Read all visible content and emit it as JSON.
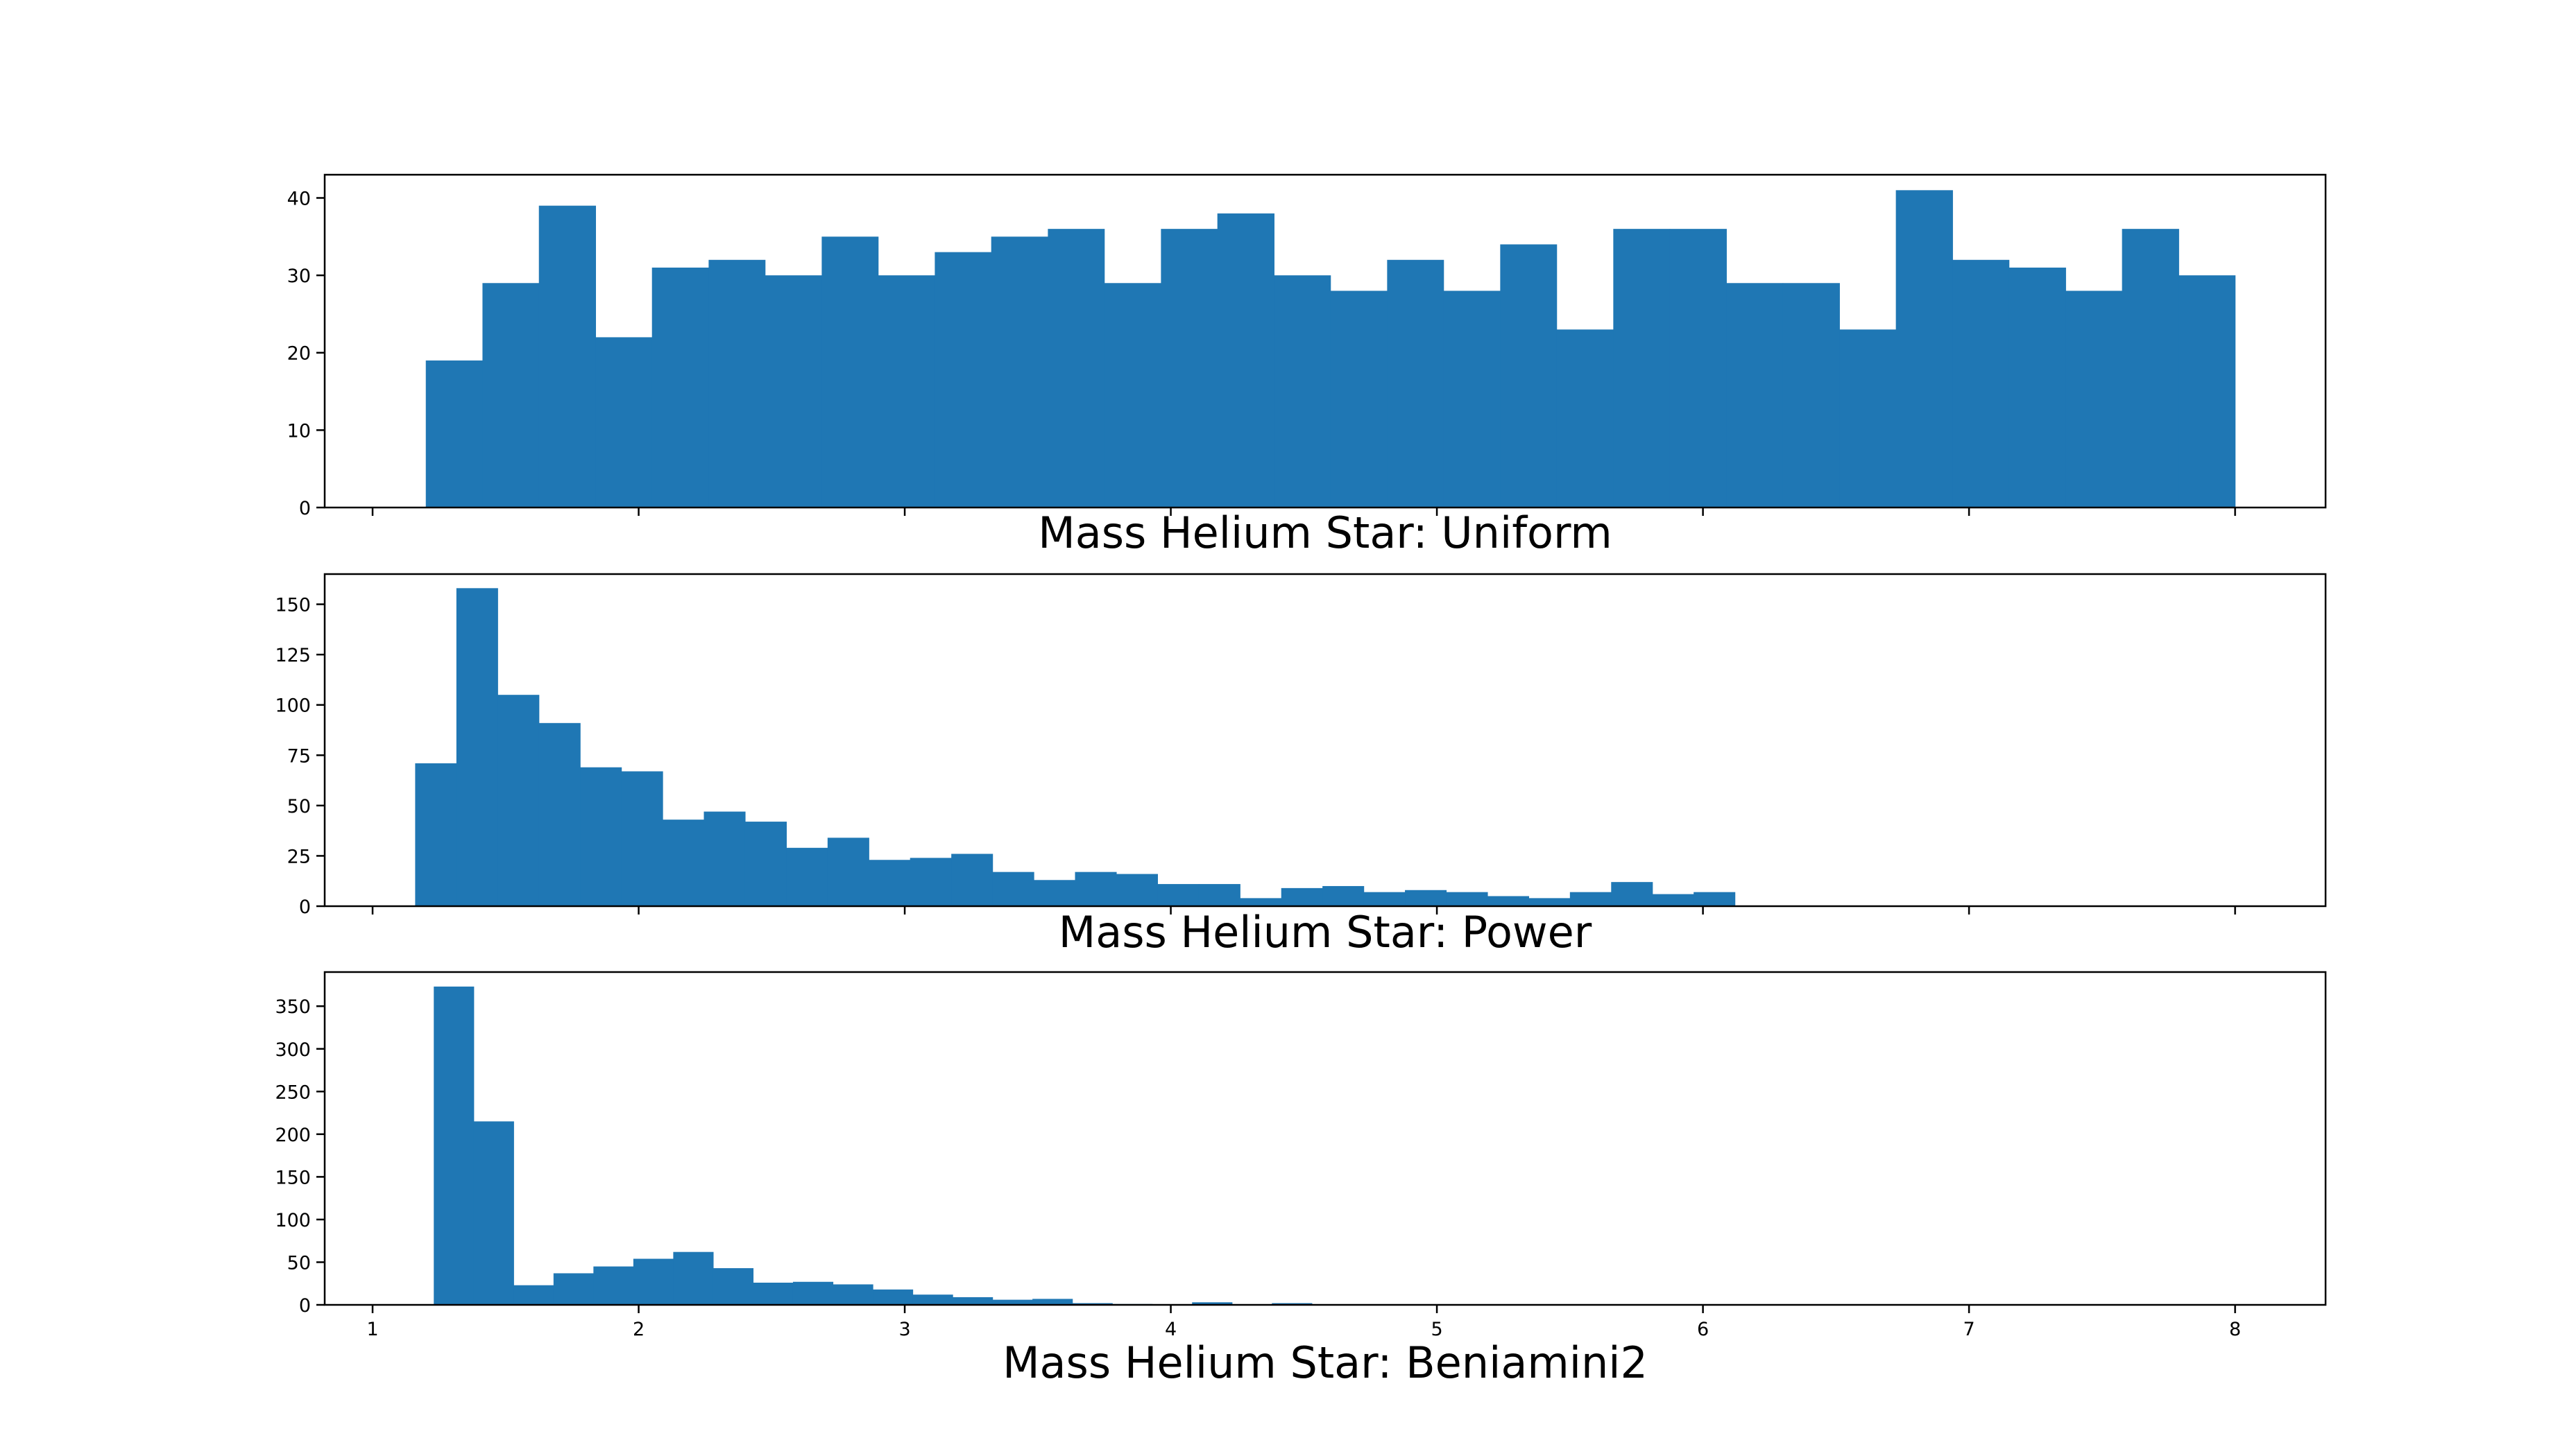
{
  "chart_data": [
    {
      "type": "bar",
      "title": "Mass Helium Star: Uniform",
      "xlabel": "",
      "ylabel": "",
      "color": "#1f77b4",
      "xlim": [
        0.82,
        8.34
      ],
      "ylim": [
        0,
        43
      ],
      "x_ticks": [
        1,
        2,
        3,
        4,
        5,
        6,
        7,
        8
      ],
      "x_tick_labels_visible": false,
      "y_ticks": [
        0,
        10,
        20,
        30,
        40
      ],
      "bin_edges": [
        1.2,
        1.413,
        1.625,
        1.838,
        2.05,
        2.263,
        2.475,
        2.688,
        2.9,
        3.113,
        3.325,
        3.538,
        3.75,
        3.963,
        4.175,
        4.388,
        4.6,
        4.813,
        5.025,
        5.238,
        5.45,
        5.663,
        5.875,
        6.088,
        6.3,
        6.513,
        6.725,
        6.938,
        7.15,
        7.363,
        7.575,
        7.788,
        8.0
      ],
      "values": [
        19,
        29,
        39,
        22,
        31,
        32,
        30,
        35,
        30,
        33,
        35,
        36,
        29,
        36,
        38,
        30,
        28,
        32,
        28,
        34,
        23,
        36,
        36,
        29,
        29,
        23,
        41,
        32,
        31,
        28,
        36,
        30
      ]
    },
    {
      "type": "bar",
      "title": "Mass Helium Star: Power",
      "xlabel": "",
      "ylabel": "",
      "color": "#1f77b4",
      "xlim": [
        0.82,
        8.34
      ],
      "ylim": [
        0,
        165
      ],
      "x_ticks": [
        1,
        2,
        3,
        4,
        5,
        6,
        7,
        8
      ],
      "x_tick_labels_visible": false,
      "y_ticks": [
        0,
        25,
        50,
        75,
        100,
        125,
        150
      ],
      "bin_edges": [
        1.16,
        1.315,
        1.47,
        1.625,
        1.78,
        1.935,
        2.09,
        2.245,
        2.4,
        2.555,
        2.71,
        2.865,
        3.02,
        3.175,
        3.33,
        3.485,
        3.64,
        3.795,
        3.95,
        4.105,
        4.26,
        4.415,
        4.57,
        4.725,
        4.88,
        5.035,
        5.19,
        5.345,
        5.5,
        5.655,
        5.81,
        5.965,
        6.12
      ],
      "values": [
        71,
        158,
        105,
        91,
        69,
        67,
        43,
        47,
        42,
        29,
        34,
        23,
        24,
        26,
        17,
        13,
        17,
        16,
        11,
        11,
        4,
        9,
        10,
        7,
        8,
        7,
        5,
        4,
        7,
        12,
        6,
        7
      ]
    },
    {
      "type": "bar",
      "title": "Mass Helium Star: Beniamini2",
      "xlabel": "",
      "ylabel": "",
      "color": "#1f77b4",
      "xlim": [
        0.82,
        8.34
      ],
      "ylim": [
        0,
        390
      ],
      "x_ticks": [
        1,
        2,
        3,
        4,
        5,
        6,
        7,
        8
      ],
      "x_tick_labels_visible": true,
      "y_ticks": [
        0,
        50,
        100,
        150,
        200,
        250,
        300,
        350
      ],
      "bin_edges": [
        1.23,
        1.38,
        1.53,
        1.68,
        1.83,
        1.98,
        2.13,
        2.28,
        2.43,
        2.58,
        2.73,
        2.88,
        3.03,
        3.18,
        3.33,
        3.48,
        3.63,
        3.78,
        3.93,
        4.08,
        4.23,
        4.38,
        4.53
      ],
      "values": [
        373,
        215,
        23,
        37,
        45,
        54,
        62,
        43,
        26,
        27,
        24,
        18,
        12,
        9,
        6,
        7,
        2,
        1,
        0,
        3,
        0,
        2
      ]
    }
  ]
}
